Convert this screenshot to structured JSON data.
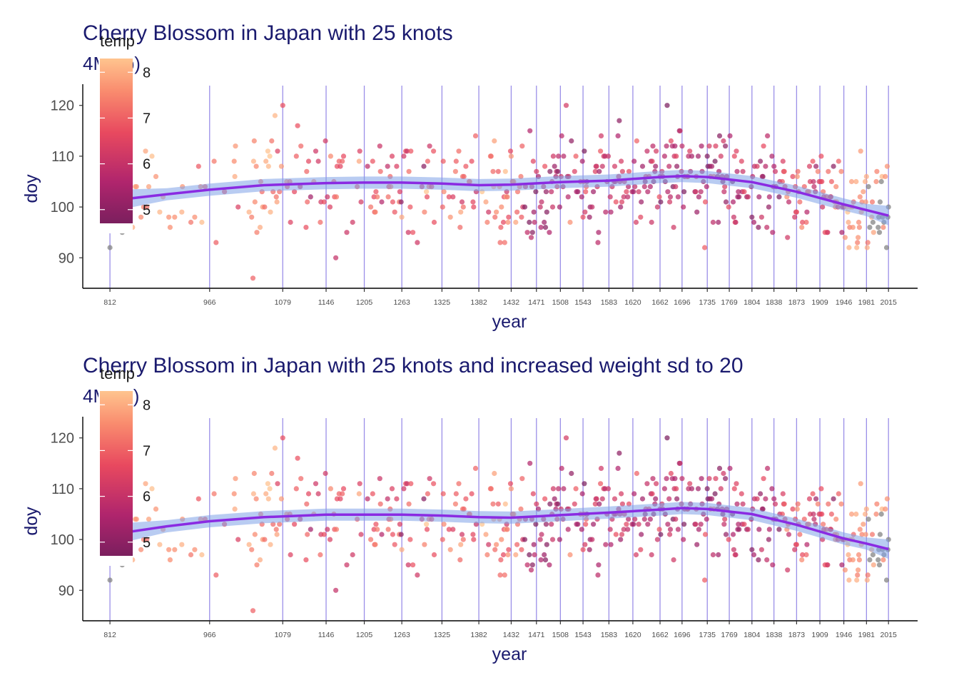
{
  "chart_data": [
    {
      "type": "scatter",
      "title": "Cherry Blossom in Japan with 25 knots",
      "subtitle": "4M8 b)",
      "xlabel": "year",
      "ylabel": "doy",
      "xlim": [
        770,
        2060
      ],
      "ylim": [
        84,
        126
      ],
      "yticks": [
        90,
        100,
        110,
        120
      ],
      "knots": [
        812,
        966,
        1079,
        1146,
        1205,
        1263,
        1325,
        1382,
        1432,
        1471,
        1508,
        1543,
        1583,
        1620,
        1662,
        1696,
        1735,
        1769,
        1804,
        1838,
        1873,
        1909,
        1946,
        1981,
        2015
      ],
      "color_legend": {
        "title": "temp",
        "ticks": [
          5,
          6,
          7,
          8
        ],
        "range": [
          4.7,
          8.3
        ]
      },
      "spline": {
        "name": "fit",
        "x": [
          831,
          900,
          966,
          1050,
          1146,
          1205,
          1263,
          1325,
          1382,
          1432,
          1508,
          1583,
          1662,
          1696,
          1735,
          1804,
          1873,
          1946,
          1981,
          2015
        ],
        "y": [
          101.5,
          102.5,
          103.4,
          104.3,
          104.7,
          104.8,
          104.8,
          104.6,
          104.3,
          104.4,
          104.9,
          105.2,
          105.9,
          106.1,
          105.9,
          104.9,
          103.0,
          100.5,
          99.4,
          98.3
        ],
        "band": 1.2
      },
      "points": []
    },
    {
      "type": "scatter",
      "title": "Cherry Blossom in Japan with 25 knots and increased weight sd to 20",
      "subtitle": "4M8 c)",
      "xlabel": "year",
      "ylabel": "doy",
      "xlim": [
        770,
        2060
      ],
      "ylim": [
        84,
        126
      ],
      "yticks": [
        90,
        100,
        110,
        120
      ],
      "knots": [
        812,
        966,
        1079,
        1146,
        1205,
        1263,
        1325,
        1382,
        1432,
        1471,
        1508,
        1543,
        1583,
        1620,
        1662,
        1696,
        1735,
        1769,
        1804,
        1838,
        1873,
        1909,
        1946,
        1981,
        2015
      ],
      "color_legend": {
        "title": "temp",
        "ticks": [
          5,
          6,
          7,
          8
        ],
        "range": [
          4.7,
          8.3
        ]
      },
      "spline": {
        "name": "fit",
        "x": [
          831,
          900,
          966,
          1050,
          1146,
          1205,
          1263,
          1325,
          1382,
          1432,
          1508,
          1583,
          1662,
          1696,
          1735,
          1804,
          1873,
          1946,
          1981,
          2015
        ],
        "y": [
          101.3,
          102.6,
          103.6,
          104.4,
          104.9,
          104.9,
          104.9,
          104.7,
          104.4,
          104.3,
          104.8,
          105.3,
          105.9,
          106.2,
          106.0,
          105.0,
          102.9,
          100.2,
          99.2,
          98.1
        ],
        "band": 1.2
      },
      "points": []
    }
  ]
}
